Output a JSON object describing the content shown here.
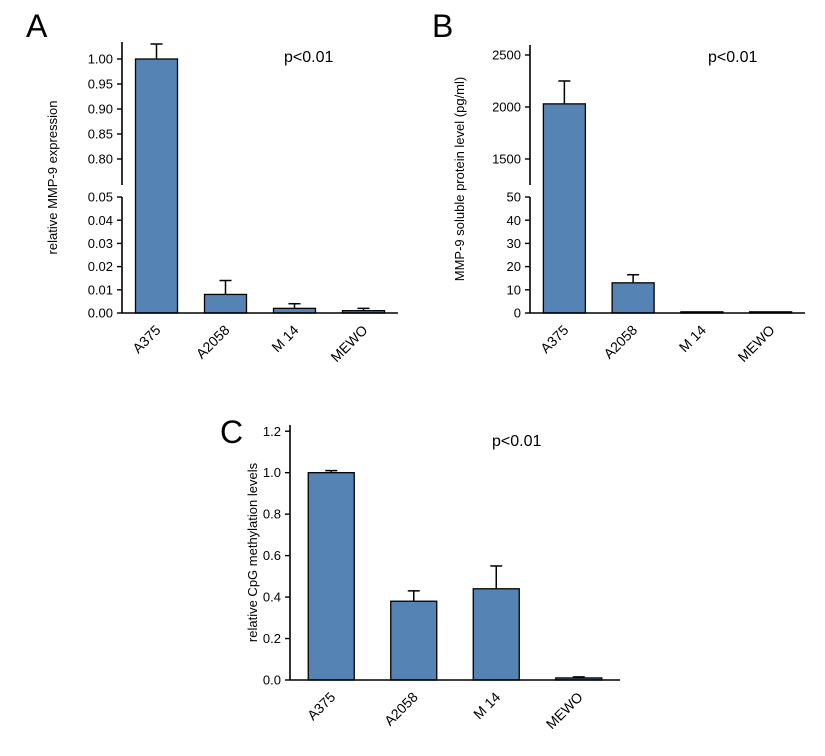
{
  "figure": {
    "background": "#ffffff",
    "bar_color": "#5584b4",
    "bar_border": "#000000"
  },
  "chart_data": [
    {
      "type": "bar",
      "panel_label": "A",
      "annotation": "p<0.01",
      "ylabel": "relative MMP-9 expression",
      "categories": [
        "A375",
        "A2058",
        "M 14",
        "MEWO"
      ],
      "values": [
        1.0,
        0.008,
        0.002,
        0.001
      ],
      "errors": [
        0.03,
        0.006,
        0.002,
        0.001
      ],
      "axis": "broken",
      "grid": false,
      "segments": [
        {
          "range": [
            0.748,
            1.034
          ],
          "ticks": [
            1.0,
            0.95,
            0.9,
            0.85,
            0.8
          ],
          "tick_format": 2
        },
        {
          "range": [
            0.0,
            0.05
          ],
          "ticks": [
            0.05,
            0.04,
            0.03,
            0.02,
            0.01,
            0.0
          ],
          "tick_format": 2
        }
      ]
    },
    {
      "type": "bar",
      "panel_label": "B",
      "annotation": "p<0.01",
      "ylabel": "MMP-9 soluble protein level (pg/ml)",
      "categories": [
        "A375",
        "A2058",
        "M 14",
        "MEWO"
      ],
      "values": [
        2030,
        13,
        0.5,
        0.5
      ],
      "errors": [
        220,
        3.5,
        0,
        0
      ],
      "axis": "broken",
      "grid": false,
      "segments": [
        {
          "range": [
            1250,
            2596
          ],
          "ticks": [
            2500,
            2000,
            1500
          ],
          "tick_format": 0
        },
        {
          "range": [
            0,
            50
          ],
          "ticks": [
            50,
            40,
            30,
            20,
            10,
            0
          ],
          "tick_format": 0
        }
      ]
    },
    {
      "type": "bar",
      "panel_label": "C",
      "annotation": "p<0.01",
      "ylabel": "relative CpG methylation levels",
      "categories": [
        "A375",
        "A2058",
        "M 14",
        "MEWO"
      ],
      "values": [
        1.0,
        0.38,
        0.44,
        0.01
      ],
      "errors": [
        0.01,
        0.05,
        0.11,
        0.005
      ],
      "axis": "single",
      "grid": false,
      "segments": [
        {
          "range": [
            0.0,
            1.23
          ],
          "ticks": [
            1.2,
            1.0,
            0.8,
            0.6,
            0.4,
            0.2,
            0.0
          ],
          "tick_format": 1
        }
      ]
    }
  ]
}
